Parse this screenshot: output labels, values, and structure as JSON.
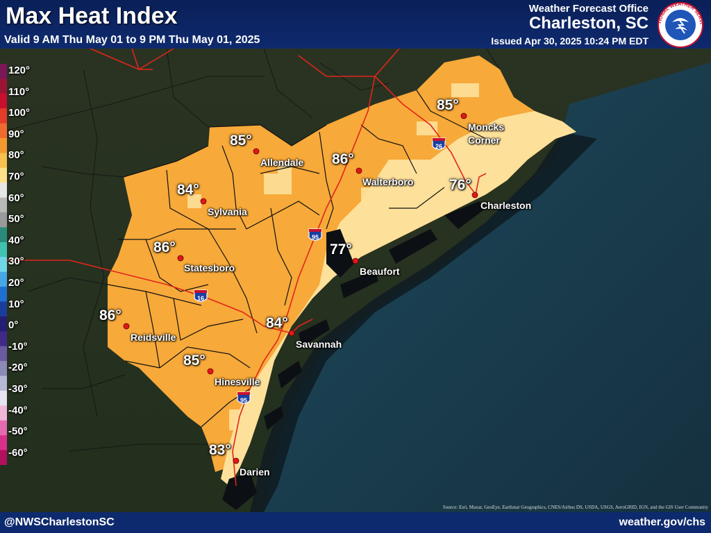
{
  "header": {
    "title": "Max Heat Index",
    "valid": "Valid 9 AM Thu May 01 to 9 PM Thu May 01, 2025",
    "office_label": "Weather Forecast Office",
    "office_name": "Charleston, SC",
    "issued": "Issued Apr 30, 2025 10:24 PM EDT",
    "logo_text": "NATIONAL WEATHER SERVICE"
  },
  "legend": {
    "labels": [
      "120°",
      "110°",
      "100°",
      "90°",
      "80°",
      "70°",
      "60°",
      "50°",
      "40°",
      "30°",
      "20°",
      "10°",
      "0°",
      "-10°",
      "-20°",
      "-30°",
      "-40°",
      "-50°",
      "-60°"
    ],
    "colors": [
      "#7a1757",
      "#9b1436",
      "#c8102e",
      "#e53b2a",
      "#ef6a2f",
      "#f29a30",
      "#f7c04f",
      "#ffe08a",
      "#e7e7e7",
      "#b8b8b8",
      "#9a9a9a",
      "#2a8a7a",
      "#3fc2b0",
      "#6fd6e8",
      "#45a7e6",
      "#1f6fd1",
      "#1a3d9c",
      "#231e72",
      "#3f2a86",
      "#6a5aa0",
      "#8d8ab8",
      "#b7b7d6",
      "#e9e2f0",
      "#f2b6d8",
      "#e46bb0",
      "#d9308a",
      "#b0105c"
    ]
  },
  "locations": [
    {
      "city": "Moncks\nCorner",
      "value": "85°"
    },
    {
      "city": "Allendale",
      "value": "85°"
    },
    {
      "city": "Walterboro",
      "value": "86°"
    },
    {
      "city": "Charleston",
      "value": "76°"
    },
    {
      "city": "Sylvania",
      "value": "84°"
    },
    {
      "city": "Statesboro",
      "value": "86°"
    },
    {
      "city": "Beaufort",
      "value": "77°"
    },
    {
      "city": "Reidsville",
      "value": "86°"
    },
    {
      "city": "Savannah",
      "value": "84°"
    },
    {
      "city": "Hinesville",
      "value": "85°"
    },
    {
      "city": "Darien",
      "value": "83°"
    }
  ],
  "highways": [
    "26",
    "95",
    "16",
    "95"
  ],
  "colors": {
    "heat_85_plus": "#f7a93a",
    "heat_75_84": "#fde09a",
    "ocean": "#1c3d52",
    "header": "#0e2a6e",
    "city_dot": "#e01818"
  },
  "footer": {
    "left": "@NWSCharlestonSC",
    "right": "weather.gov/chs"
  },
  "source": "Source: Esri, Maxar, GeoEye, Earthstar Geographics, CNES/Airbus DS, USDA, USGS, AeroGRID, IGN, and the GIS User Community"
}
